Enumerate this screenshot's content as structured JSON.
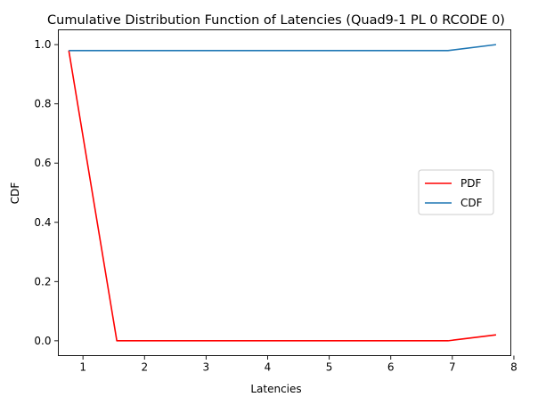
{
  "chart_data": {
    "type": "line",
    "title": "Cumulative Distribution Function of Latencies (Quad9-1 PL 0 RCODE 0)",
    "xlabel": "Latencies",
    "ylabel": "CDF",
    "xlim": [
      0.6,
      7.95
    ],
    "ylim": [
      -0.05,
      1.05
    ],
    "xticks": [
      1,
      2,
      3,
      4,
      5,
      6,
      7,
      8
    ],
    "yticks": [
      0.0,
      0.2,
      0.4,
      0.6,
      0.8,
      1.0
    ],
    "ytick_labels": [
      "0.0",
      "0.2",
      "0.4",
      "0.6",
      "0.8",
      "1.0"
    ],
    "legend_position": "center-right",
    "grid": false,
    "series": [
      {
        "name": "PDF",
        "color": "#ff0000",
        "x": [
          0.77,
          1.55,
          6.93,
          7.71
        ],
        "y": [
          0.98,
          0.0,
          0.0,
          0.02
        ]
      },
      {
        "name": "CDF",
        "color": "#1f77b4",
        "x": [
          0.77,
          1.55,
          6.93,
          7.71
        ],
        "y": [
          0.98,
          0.98,
          0.98,
          1.0
        ]
      }
    ]
  }
}
